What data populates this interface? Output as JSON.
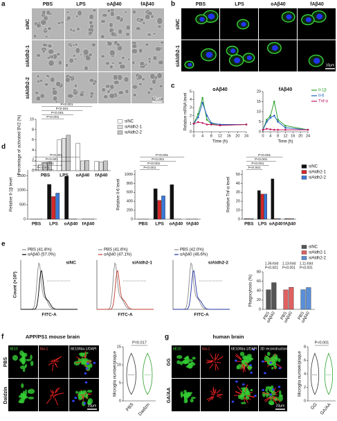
{
  "panel_a": {
    "letter": "a",
    "columns": [
      "PBS",
      "LPS",
      "oAβ40",
      "fAβ40"
    ],
    "rows": [
      "siNC",
      "siAldh2-1",
      "siAldh2-2"
    ],
    "scale_bar": "50μm"
  },
  "panel_b": {
    "letter": "b",
    "columns": [
      "PBS",
      "LPS",
      "oAβ40",
      "fAβ40"
    ],
    "rows": [
      "siNC",
      "siAldh2-1"
    ],
    "scale_bar": "10μm"
  },
  "panel_c": {
    "letter": "c"
  },
  "panel_d": {
    "letter": "d"
  },
  "panel_e": {
    "letter": "e",
    "ylabel": "Count (×10³)",
    "xlabel": "FITC-A",
    "plots": [
      {
        "label": "siNC",
        "lines": [
          "PBS (41.8%)",
          "oAβ40 (57.0%)"
        ],
        "color": "#000000"
      },
      {
        "label": "siAldh2-1",
        "lines": [
          "PBS (41.6%)",
          "oAβ40 (47.1%)"
        ],
        "color": "#c0392b"
      },
      {
        "label": "siAldh2-2",
        "lines": [
          "PBS (42.0%)",
          "oAβ40 (46.6%)"
        ],
        "color": "#1f2f9f"
      }
    ]
  },
  "panel_f": {
    "letter": "f",
    "title": "APP/PS1 mouse brain",
    "channels": [
      "6E10",
      "Iba-1",
      "6E10/Iba-1/DAPI"
    ],
    "rows": [
      "PBS",
      "Daidzin"
    ],
    "scale_bar": "20μm"
  },
  "panel_g": {
    "letter": "g",
    "title": "human brain",
    "channels": [
      "6E10",
      "Iba-1",
      "6E10/Iba-1/DAPI",
      "3D reconstruction"
    ],
    "rows": [
      "GG",
      "GA/AA"
    ],
    "scale_bar": "20μm"
  },
  "chart_data": [
    {
      "type": "bar",
      "ylabel": "Percentage of activated BV2 (%)",
      "categories": [
        "PBS",
        "LPS",
        "oAβ40",
        "fAβ40"
      ],
      "series": [
        {
          "name": "siNC",
          "color": "#ffffff",
          "values": [
            1.2,
            6.0,
            5.3,
            1.8
          ]
        },
        {
          "name": "siAldh2-1",
          "color": "#e0e0e0",
          "values": [
            1.6,
            6.3,
            1.9,
            1.7
          ]
        },
        {
          "name": "siAldh2-2",
          "color": "#c4c4c4",
          "values": [
            1.7,
            6.9,
            2.0,
            1.9
          ]
        }
      ],
      "ylim": [
        0,
        10
      ],
      "yticks": [
        0,
        2,
        4,
        6,
        8,
        10
      ],
      "legend": true,
      "annotations": [
        "P<0.001",
        "P<0.001",
        "P<0.001",
        "P<0.001"
      ]
    },
    {
      "type": "line",
      "title": "oAβ40",
      "xlabel": "Time (h)",
      "ylabel": "Relative mRNA level",
      "x": [
        0,
        2,
        4,
        6,
        8,
        12,
        24
      ],
      "xlim": [
        0,
        24
      ],
      "xticks": [
        0,
        4,
        8,
        12,
        16,
        20,
        24
      ],
      "ylim": [
        0,
        5
      ],
      "yticks": [
        0,
        1,
        2,
        3,
        4,
        5
      ],
      "series": [
        {
          "name": "Il-1β",
          "color": "#2ca02c",
          "values": [
            1,
            2.2,
            4.2,
            1.5,
            1.0,
            0.8,
            0.9
          ]
        },
        {
          "name": "Il-6",
          "color": "#1f5fbf",
          "values": [
            1,
            1.8,
            3.6,
            2.0,
            1.1,
            0.9,
            0.9
          ]
        },
        {
          "name": "Tnf-α",
          "color": "#c2185b",
          "values": [
            1,
            1.2,
            1.1,
            0.9,
            0.9,
            0.8,
            0.9
          ]
        }
      ]
    },
    {
      "type": "line",
      "title": "fAβ40",
      "xlabel": "Time (h)",
      "x": [
        0,
        2,
        4,
        6,
        8,
        12,
        24
      ],
      "xlim": [
        0,
        24
      ],
      "xticks": [
        0,
        4,
        8,
        12,
        16,
        20,
        24
      ],
      "ylim": [
        0,
        20
      ],
      "yticks": [
        0,
        5,
        10,
        15,
        20
      ],
      "legend": true,
      "series": [
        {
          "name": "Il-1β",
          "color": "#2ca02c",
          "values": [
            1,
            6,
            8,
            15,
            6,
            3,
            1
          ]
        },
        {
          "name": "Il-6",
          "color": "#1f5fbf",
          "values": [
            1,
            5,
            7,
            8,
            5,
            2,
            1
          ]
        },
        {
          "name": "Tnf-α",
          "color": "#c2185b",
          "values": [
            1,
            1.5,
            1.2,
            1,
            1,
            1,
            1
          ]
        }
      ]
    },
    {
      "type": "bar",
      "ylabel": "Relative Il-1β level",
      "categories": [
        "PBS",
        "LPS",
        "oAβ40",
        "fAβ40"
      ],
      "series": [
        {
          "name": "siNC",
          "color": "#111111",
          "values": [
            2,
            1200,
            1480,
            4
          ]
        },
        {
          "name": "siAldh2-1",
          "color": "#d62728",
          "values": [
            3,
            780,
            5,
            3
          ]
        },
        {
          "name": "siAldh2-2",
          "color": "#3a78d8",
          "values": [
            3,
            900,
            8,
            4
          ]
        }
      ],
      "ylim": [
        0,
        1700
      ],
      "yticks": [
        0,
        500,
        1000,
        1500
      ],
      "annotations": [
        "P<0.001",
        "P<0.001",
        "P<0.001",
        "P<0.001"
      ]
    },
    {
      "type": "bar",
      "ylabel": "Relative Il-6 level",
      "categories": [
        "PBS",
        "LPS",
        "oAβ40",
        "fAβ40"
      ],
      "series": [
        {
          "name": "siNC",
          "color": "#111111",
          "values": [
            1,
            680,
            770,
            2
          ]
        },
        {
          "name": "siAldh2-1",
          "color": "#d62728",
          "values": [
            1,
            420,
            2,
            1
          ]
        },
        {
          "name": "siAldh2-2",
          "color": "#3a78d8",
          "values": [
            1,
            520,
            3,
            2
          ]
        }
      ],
      "ylim": [
        0,
        1100
      ],
      "yticks": [
        0,
        200,
        400,
        600,
        800,
        1000
      ],
      "annotations": [
        "P<0.001",
        "P<0.001",
        "P<0.001",
        "P<0.001"
      ]
    },
    {
      "type": "bar",
      "ylabel": "Relative Tnf-α level",
      "categories": [
        "PBS",
        "LPS",
        "oAβ40",
        "fAβ40"
      ],
      "series": [
        {
          "name": "siNC",
          "color": "#111111",
          "values": [
            0.5,
            32,
            45,
            0.5
          ]
        },
        {
          "name": "siAldh2-1",
          "color": "#d62728",
          "values": [
            0.5,
            28,
            0.6,
            0.5
          ]
        },
        {
          "name": "siAldh2-2",
          "color": "#3a78d8",
          "values": [
            0.5,
            28,
            0.7,
            0.5
          ]
        }
      ],
      "ylim": [
        0,
        55
      ],
      "yticks": [
        0,
        10,
        20,
        30,
        40,
        50
      ],
      "legend": true,
      "annotations": [
        "P<0.001",
        "P<0.001",
        "P<0.001",
        "P<0.001"
      ]
    },
    {
      "type": "bar",
      "layout": "series-groups",
      "ylabel": "Phagocytosis (%)",
      "categories": [
        "PBS",
        "oAβ40"
      ],
      "series": [
        {
          "name": "siNC",
          "color": "#555555",
          "values": [
            41.8,
            57.0
          ]
        },
        {
          "name": "siAldh2-1",
          "color": "#e06060",
          "values": [
            41.6,
            47.1
          ]
        },
        {
          "name": "siAldh2-2",
          "color": "#5a8fd8",
          "values": [
            42.0,
            46.6
          ]
        }
      ],
      "ylim": [
        0,
        80
      ],
      "yticks": [
        0,
        20,
        40,
        60,
        80
      ],
      "legend": true,
      "annotations": [
        "1.36-fold",
        "P<0.001",
        "1.13-fold",
        "P<0.001",
        "1.11-fold",
        "P<0.001"
      ]
    },
    {
      "type": "violin",
      "ylabel": "Microglia number/plaque",
      "categories": [
        "PBS",
        "Daidzin"
      ],
      "colors": [
        "#333333",
        "#2ca02c"
      ],
      "ylim": [
        0,
        15
      ],
      "yticks": [
        0,
        5,
        10,
        15
      ],
      "annotations": [
        "P=0.017"
      ]
    },
    {
      "type": "violin",
      "ylabel": "Microglia number/plaque",
      "categories": [
        "GG",
        "GA/AA"
      ],
      "colors": [
        "#333333",
        "#2ca02c"
      ],
      "ylim": [
        0,
        8
      ],
      "yticks": [
        0,
        2,
        4,
        6,
        8
      ],
      "annotations": [
        "P<0.001"
      ]
    }
  ]
}
